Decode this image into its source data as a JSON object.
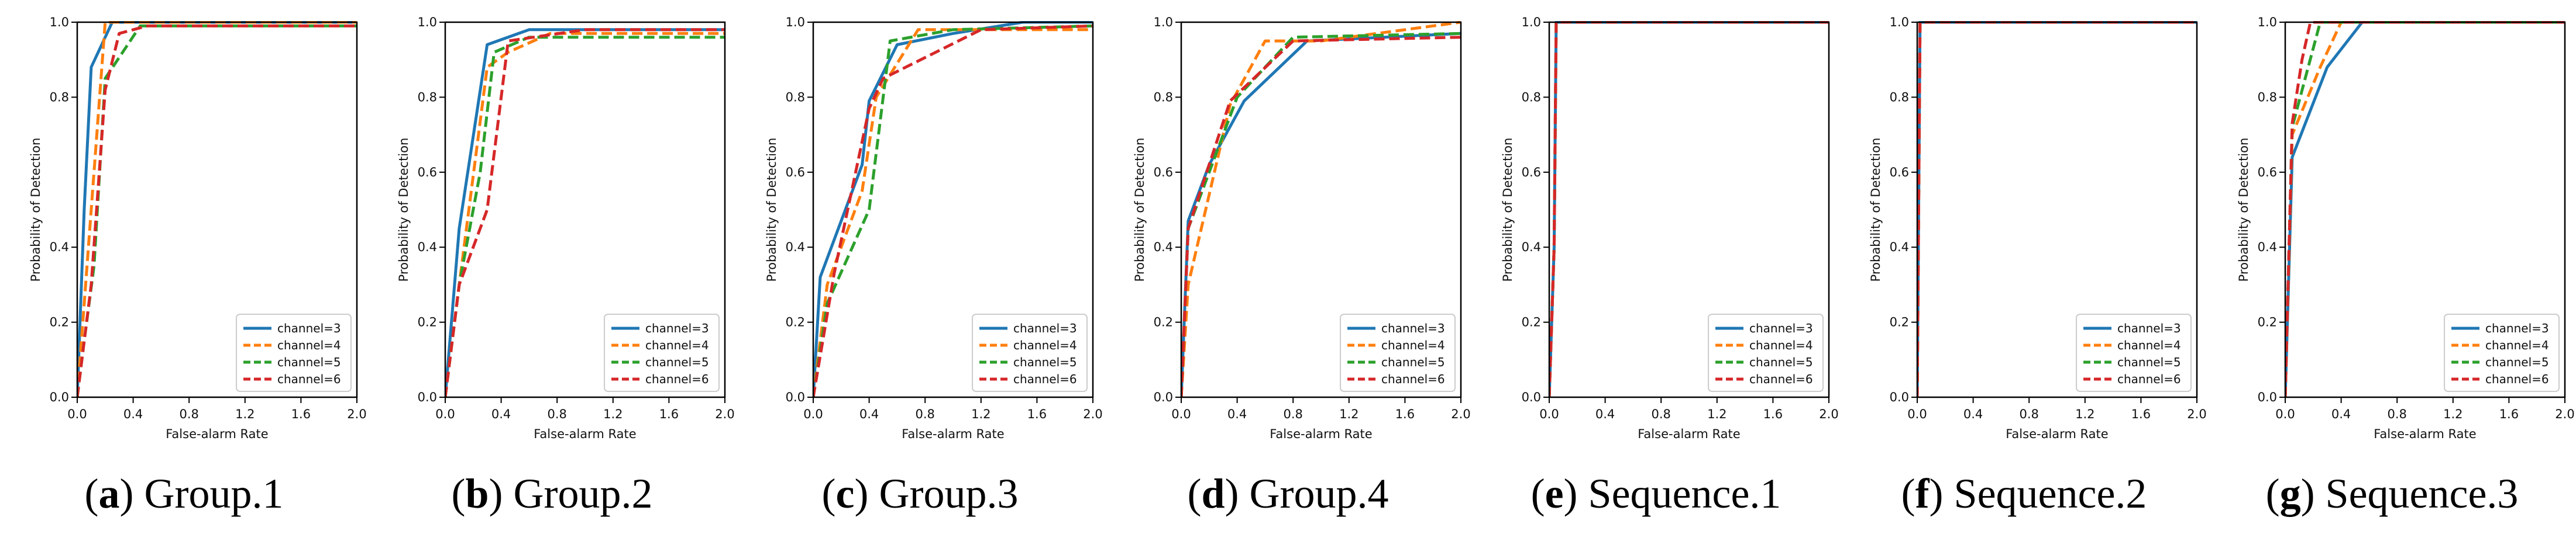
{
  "figure": {
    "colors": {
      "channel3": "#1f77b4",
      "channel4": "#ff7f0e",
      "channel5": "#2ca02c",
      "channel6": "#d62728",
      "frame": "#000000"
    }
  },
  "chart_data": [
    {
      "type": "line",
      "letter": "a",
      "caption": "Group.1",
      "xlabel": "False-alarm Rate",
      "ylabel": "Probability of Detection",
      "xlim": [
        0,
        2.0
      ],
      "ylim": [
        0,
        1.0
      ],
      "xticks": [
        "0.0",
        "0.4",
        "0.8",
        "1.2",
        "1.6",
        "2.0"
      ],
      "yticks": [
        "0.0",
        "0.2",
        "0.4",
        "0.8",
        "1.0"
      ],
      "legend_position": "bottom-right",
      "series": [
        {
          "name": "channel=3",
          "dash": "solid",
          "x": [
            0,
            0.05,
            0.1,
            0.25,
            2.0
          ],
          "y": [
            0,
            0.5,
            0.88,
            1.0,
            1.0
          ]
        },
        {
          "name": "channel=4",
          "dash": "dashed",
          "x": [
            0,
            0.1,
            0.2,
            2.0
          ],
          "y": [
            0,
            0.5,
            1.0,
            1.0
          ]
        },
        {
          "name": "channel=5",
          "dash": "dashed",
          "x": [
            0,
            0.05,
            0.12,
            0.2,
            0.45,
            2.0
          ],
          "y": [
            0,
            0.15,
            0.35,
            0.85,
            0.99,
            0.99
          ]
        },
        {
          "name": "channel=6",
          "dash": "dashed",
          "x": [
            0,
            0.1,
            0.2,
            0.3,
            0.5,
            2.0
          ],
          "y": [
            0,
            0.3,
            0.82,
            0.97,
            0.99,
            0.99
          ]
        }
      ]
    },
    {
      "type": "line",
      "letter": "b",
      "caption": "Group.2",
      "xlabel": "False-alarm Rate",
      "ylabel": "Probability of Detection",
      "xlim": [
        0,
        2.0
      ],
      "ylim": [
        0,
        1.0
      ],
      "xticks": [
        "0.0",
        "0.4",
        "0.8",
        "1.2",
        "1.6",
        "2.0"
      ],
      "yticks": [
        "0.0",
        "0.2",
        "0.4",
        "0.6",
        "0.8",
        "1.0"
      ],
      "legend_position": "bottom-right",
      "series": [
        {
          "name": "channel=3",
          "dash": "solid",
          "x": [
            0,
            0.1,
            0.3,
            0.6,
            2.0
          ],
          "y": [
            0,
            0.45,
            0.94,
            0.98,
            0.98
          ]
        },
        {
          "name": "channel=4",
          "dash": "dashed",
          "x": [
            0,
            0.1,
            0.3,
            0.45,
            0.75,
            2.0
          ],
          "y": [
            0,
            0.3,
            0.88,
            0.92,
            0.97,
            0.97
          ]
        },
        {
          "name": "channel=5",
          "dash": "dashed",
          "x": [
            0,
            0.1,
            0.25,
            0.35,
            0.6,
            2.0
          ],
          "y": [
            0,
            0.3,
            0.6,
            0.92,
            0.96,
            0.96
          ]
        },
        {
          "name": "channel=6",
          "dash": "dashed",
          "x": [
            0,
            0.1,
            0.3,
            0.45,
            1.0,
            2.0
          ],
          "y": [
            0,
            0.3,
            0.5,
            0.95,
            0.98,
            0.98
          ]
        }
      ]
    },
    {
      "type": "line",
      "letter": "c",
      "caption": "Group.3",
      "xlabel": "False-alarm Rate",
      "ylabel": "Probability of Detection",
      "xlim": [
        0,
        2.0
      ],
      "ylim": [
        0,
        1.0
      ],
      "xticks": [
        "0.0",
        "0.4",
        "0.8",
        "1.2",
        "1.6",
        "2.0"
      ],
      "yticks": [
        "0.0",
        "0.2",
        "0.4",
        "0.6",
        "0.8",
        "1.0"
      ],
      "legend_position": "bottom-right",
      "series": [
        {
          "name": "channel=3",
          "dash": "solid",
          "x": [
            0,
            0.05,
            0.35,
            0.4,
            0.6,
            1.0,
            1.5,
            2.0
          ],
          "y": [
            0,
            0.32,
            0.62,
            0.79,
            0.94,
            0.97,
            1.0,
            1.0
          ]
        },
        {
          "name": "channel=4",
          "dash": "dashed",
          "x": [
            0,
            0.1,
            0.35,
            0.45,
            0.75,
            1.3,
            2.0
          ],
          "y": [
            0,
            0.3,
            0.55,
            0.8,
            0.98,
            0.98,
            0.98
          ]
        },
        {
          "name": "channel=5",
          "dash": "dashed",
          "x": [
            0,
            0.1,
            0.4,
            0.55,
            1.0,
            2.0
          ],
          "y": [
            0,
            0.25,
            0.5,
            0.95,
            0.98,
            0.99
          ]
        },
        {
          "name": "channel=6",
          "dash": "dashed",
          "x": [
            0,
            0.15,
            0.4,
            0.5,
            1.2,
            2.0
          ],
          "y": [
            0,
            0.33,
            0.77,
            0.85,
            0.98,
            0.99
          ]
        }
      ]
    },
    {
      "type": "line",
      "letter": "d",
      "caption": "Group.4",
      "xlabel": "False-alarm Rate",
      "ylabel": "Probability of Detection",
      "xlim": [
        0,
        2.0
      ],
      "ylim": [
        0,
        1.0
      ],
      "xticks": [
        "0.0",
        "0.4",
        "0.8",
        "1.2",
        "1.6",
        "2.0"
      ],
      "yticks": [
        "0.0",
        "0.2",
        "0.4",
        "0.6",
        "0.8",
        "1.0"
      ],
      "legend_position": "bottom-right",
      "series": [
        {
          "name": "channel=3",
          "dash": "solid",
          "x": [
            0,
            0.05,
            0.2,
            0.45,
            0.9,
            2.0
          ],
          "y": [
            0,
            0.47,
            0.62,
            0.79,
            0.95,
            0.97
          ]
        },
        {
          "name": "channel=4",
          "dash": "dashed",
          "x": [
            0,
            0.05,
            0.35,
            0.6,
            1.0,
            2.0
          ],
          "y": [
            0,
            0.3,
            0.78,
            0.95,
            0.95,
            1.0
          ]
        },
        {
          "name": "channel=5",
          "dash": "dashed",
          "x": [
            0,
            0.05,
            0.4,
            0.8,
            2.0
          ],
          "y": [
            0,
            0.45,
            0.8,
            0.96,
            0.97
          ]
        },
        {
          "name": "channel=6",
          "dash": "dashed",
          "x": [
            0,
            0.05,
            0.35,
            0.8,
            2.0
          ],
          "y": [
            0,
            0.45,
            0.79,
            0.95,
            0.96
          ]
        }
      ]
    },
    {
      "type": "line",
      "letter": "e",
      "caption": "Sequence.1",
      "xlabel": "False-alarm Rate",
      "ylabel": "Probability of Detection",
      "xlim": [
        0,
        2.0
      ],
      "ylim": [
        0,
        1.0
      ],
      "xticks": [
        "0.0",
        "0.4",
        "0.8",
        "1.2",
        "1.6",
        "2.0"
      ],
      "yticks": [
        "0.0",
        "0.2",
        "0.4",
        "0.6",
        "0.8",
        "1.0"
      ],
      "legend_position": "bottom-right",
      "series": [
        {
          "name": "channel=3",
          "dash": "solid",
          "x": [
            0,
            0.035,
            0.05,
            2.0
          ],
          "y": [
            0,
            0.4,
            1.0,
            1.0
          ]
        },
        {
          "name": "channel=4",
          "dash": "dashed",
          "x": [
            0,
            0.035,
            0.05,
            2.0
          ],
          "y": [
            0,
            0.4,
            1.0,
            1.0
          ]
        },
        {
          "name": "channel=5",
          "dash": "dashed",
          "x": [
            0,
            0.035,
            0.05,
            2.0
          ],
          "y": [
            0,
            0.4,
            1.0,
            1.0
          ]
        },
        {
          "name": "channel=6",
          "dash": "dashed",
          "x": [
            0,
            0.035,
            0.05,
            2.0
          ],
          "y": [
            0,
            0.4,
            1.0,
            1.0
          ]
        }
      ]
    },
    {
      "type": "line",
      "letter": "f",
      "caption": "Sequence.2",
      "xlabel": "False-alarm Rate",
      "ylabel": "Probability of Detection",
      "xlim": [
        0,
        2.0
      ],
      "ylim": [
        0,
        1.0
      ],
      "xticks": [
        "0.0",
        "0.4",
        "0.8",
        "1.2",
        "1.6",
        "2.0"
      ],
      "yticks": [
        "0.0",
        "0.2",
        "0.4",
        "0.6",
        "0.8",
        "1.0"
      ],
      "legend_position": "bottom-right",
      "series": [
        {
          "name": "channel=3",
          "dash": "solid",
          "x": [
            0,
            0.02,
            2.0
          ],
          "y": [
            0,
            1.0,
            1.0
          ]
        },
        {
          "name": "channel=4",
          "dash": "dashed",
          "x": [
            0,
            0.02,
            2.0
          ],
          "y": [
            0,
            1.0,
            1.0
          ]
        },
        {
          "name": "channel=5",
          "dash": "dashed",
          "x": [
            0,
            0.02,
            2.0
          ],
          "y": [
            0,
            1.0,
            1.0
          ]
        },
        {
          "name": "channel=6",
          "dash": "dashed",
          "x": [
            0,
            0.02,
            2.0
          ],
          "y": [
            0,
            1.0,
            1.0
          ]
        }
      ]
    },
    {
      "type": "line",
      "letter": "g",
      "caption": "Sequence.3",
      "xlabel": "False-alarm Rate",
      "ylabel": "Probability of Detection",
      "xlim": [
        0,
        2.0
      ],
      "ylim": [
        0,
        1.0
      ],
      "xticks": [
        "0.0",
        "0.4",
        "0.8",
        "1.2",
        "1.6",
        "2.0"
      ],
      "yticks": [
        "0.0",
        "0.2",
        "0.4",
        "0.6",
        "0.8",
        "1.0"
      ],
      "legend_position": "bottom-right",
      "series": [
        {
          "name": "channel=3",
          "dash": "solid",
          "x": [
            0,
            0.05,
            0.3,
            0.55,
            2.0
          ],
          "y": [
            0,
            0.64,
            0.88,
            1.0,
            1.0
          ]
        },
        {
          "name": "channel=4",
          "dash": "dashed",
          "x": [
            0,
            0.05,
            0.25,
            0.4,
            2.0
          ],
          "y": [
            0,
            0.7,
            0.88,
            1.0,
            1.0
          ]
        },
        {
          "name": "channel=5",
          "dash": "dashed",
          "x": [
            0,
            0.05,
            0.15,
            0.25,
            2.0
          ],
          "y": [
            0,
            0.72,
            0.86,
            1.0,
            1.0
          ]
        },
        {
          "name": "channel=6",
          "dash": "dashed",
          "x": [
            0,
            0.05,
            0.12,
            0.18,
            2.0
          ],
          "y": [
            0,
            0.73,
            0.9,
            1.0,
            1.0
          ]
        }
      ]
    }
  ]
}
